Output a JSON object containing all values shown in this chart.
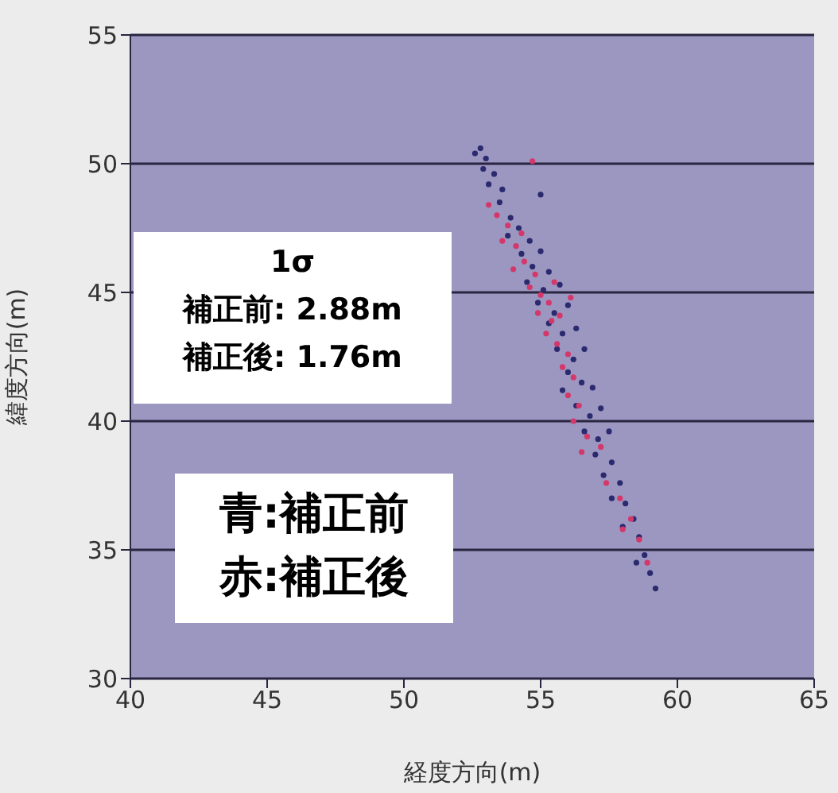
{
  "chart_data": {
    "type": "scatter",
    "xlabel": "経度方向(m)",
    "ylabel": "緯度方向(m)",
    "xlim": [
      40,
      65
    ],
    "xticks": [
      40,
      45,
      50,
      55,
      60,
      65
    ],
    "ylim": [
      30,
      55
    ],
    "yticks": [
      30,
      35,
      40,
      45,
      50,
      55
    ],
    "grid": "y",
    "annotations": [
      "1σ",
      "補正前: 2.88m",
      "補正後: 1.76m",
      "青:補正前",
      "赤:補正後"
    ],
    "series": [
      {
        "color": "#2b2a6e",
        "x": [
          52.6,
          52.8,
          53.0,
          52.9,
          53.3,
          53.1,
          53.6,
          55.0,
          53.5,
          53.9,
          54.2,
          53.8,
          54.6,
          54.3,
          55.0,
          54.7,
          55.3,
          54.5,
          55.1,
          55.7,
          54.9,
          55.5,
          56.0,
          55.3,
          55.8,
          56.3,
          55.6,
          56.2,
          56.6,
          56.0,
          56.5,
          55.8,
          56.9,
          56.3,
          56.8,
          57.2,
          56.6,
          57.1,
          57.5,
          57.0,
          57.6,
          57.3,
          57.9,
          57.6,
          58.1,
          58.4,
          58.0,
          58.6,
          58.8,
          58.5,
          59.0,
          59.2
        ],
        "values": [
          50.4,
          50.6,
          50.2,
          49.8,
          49.6,
          49.2,
          49.0,
          48.8,
          48.5,
          47.9,
          47.5,
          47.2,
          47.0,
          46.5,
          46.6,
          46.0,
          45.8,
          45.4,
          45.1,
          45.3,
          44.6,
          44.2,
          44.5,
          43.8,
          43.4,
          43.6,
          42.8,
          42.4,
          42.8,
          41.9,
          41.5,
          41.2,
          41.3,
          40.6,
          40.2,
          40.5,
          39.6,
          39.3,
          39.6,
          38.7,
          38.4,
          37.9,
          37.6,
          37.0,
          36.8,
          36.2,
          35.9,
          35.5,
          34.8,
          34.5,
          34.1,
          33.5
        ]
      },
      {
        "color": "#d4386a",
        "x": [
          53.1,
          54.7,
          53.4,
          53.8,
          53.6,
          54.1,
          54.4,
          54.0,
          54.8,
          54.6,
          55.0,
          55.3,
          54.9,
          55.4,
          55.7,
          55.2,
          55.6,
          56.0,
          55.8,
          56.2,
          56.0,
          56.4,
          56.2,
          56.7,
          56.5,
          57.2,
          57.4,
          57.9,
          58.3,
          58.0,
          58.6,
          58.9,
          56.1,
          55.5,
          54.3
        ],
        "values": [
          48.4,
          50.1,
          48.0,
          47.6,
          47.0,
          46.8,
          46.2,
          45.9,
          45.7,
          45.2,
          44.9,
          44.6,
          44.2,
          43.9,
          44.1,
          43.4,
          43.0,
          42.6,
          42.1,
          41.7,
          41.0,
          40.6,
          40.0,
          39.4,
          38.8,
          39.0,
          37.6,
          37.0,
          36.2,
          35.8,
          35.4,
          34.5,
          44.8,
          45.4,
          47.3
        ]
      }
    ]
  }
}
